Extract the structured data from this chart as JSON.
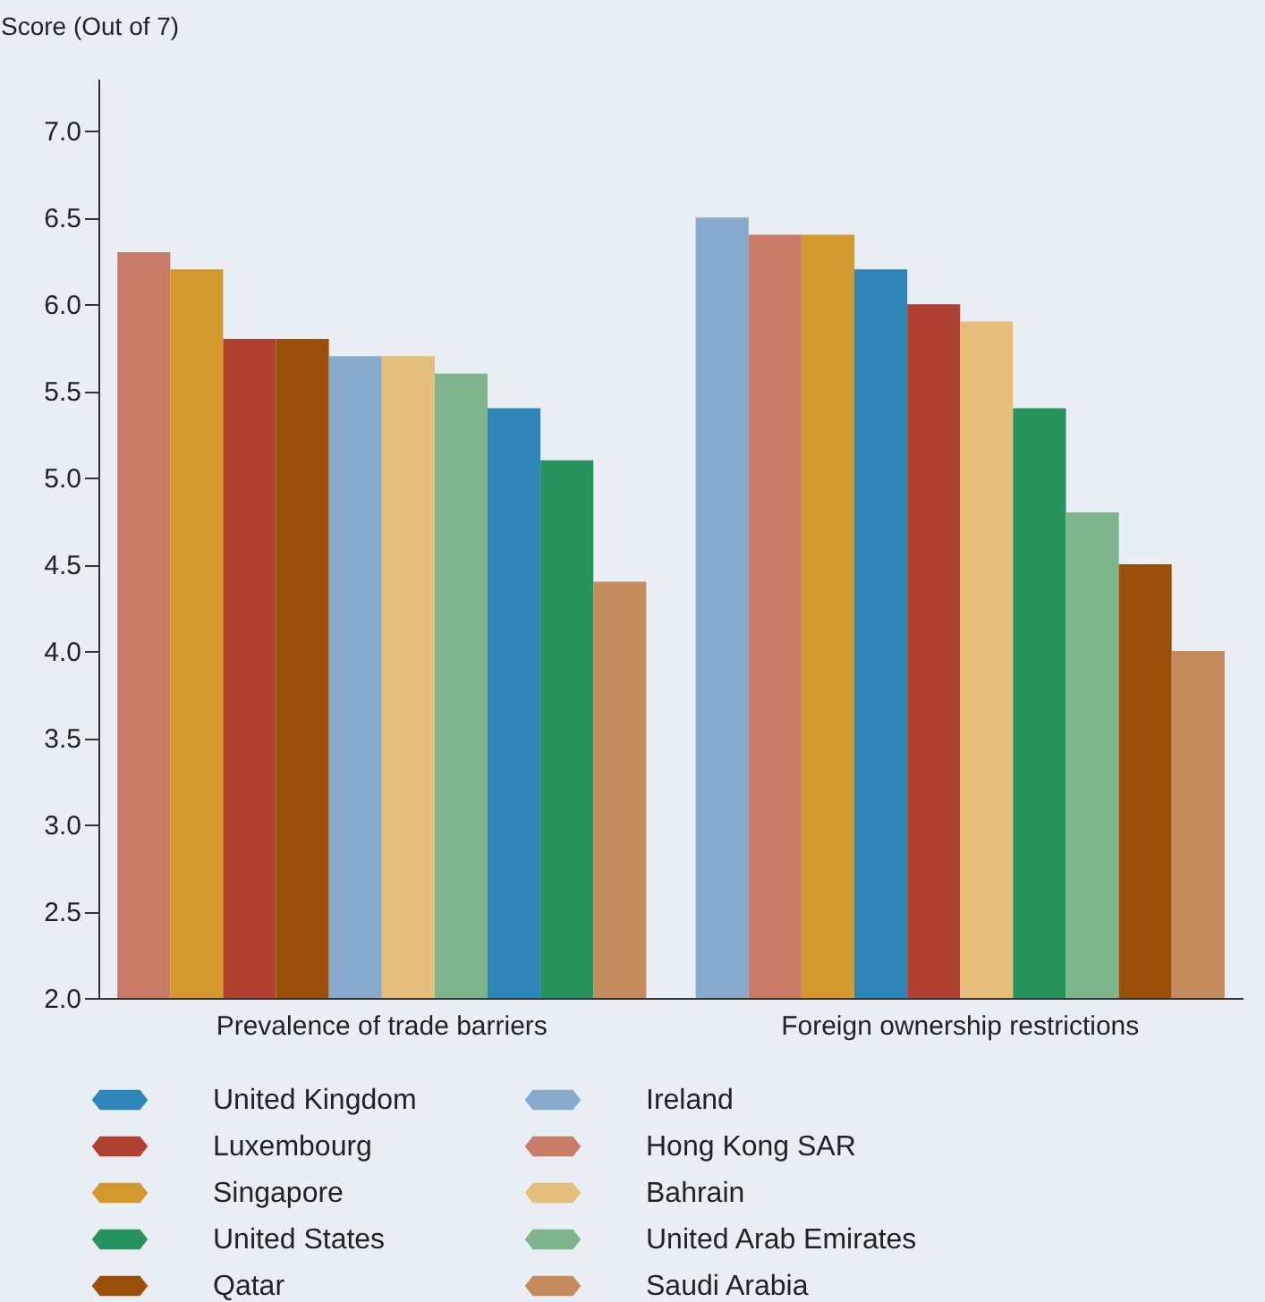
{
  "chart_data": {
    "type": "bar",
    "ylabel": "Score (Out of 7)",
    "categories": [
      "Prevalence of trade barriers",
      "Foreign ownership restrictions"
    ],
    "series": [
      {
        "name": "United Kingdom",
        "color": "#2e86b8",
        "values": [
          5.4,
          6.2
        ]
      },
      {
        "name": "Ireland",
        "color": "#86aacc",
        "values": [
          5.7,
          6.5
        ]
      },
      {
        "name": "Luxembourg",
        "color": "#b04030",
        "values": [
          5.8,
          6.0
        ]
      },
      {
        "name": "Hong Kong SAR",
        "color": "#c87c68",
        "values": [
          6.3,
          6.4
        ]
      },
      {
        "name": "Singapore",
        "color": "#d4992c",
        "values": [
          6.2,
          6.4
        ]
      },
      {
        "name": "Bahrain",
        "color": "#e6be7c",
        "values": [
          5.7,
          5.9
        ]
      },
      {
        "name": "United States",
        "color": "#27935c",
        "values": [
          5.1,
          5.4
        ]
      },
      {
        "name": "United Arab Emirates",
        "color": "#7db48c",
        "values": [
          5.6,
          4.8
        ]
      },
      {
        "name": "Qatar",
        "color": "#9a5009",
        "values": [
          5.8,
          4.5
        ]
      },
      {
        "name": "Saudi Arabia",
        "color": "#c48c5c",
        "values": [
          4.4,
          4.0
        ]
      }
    ],
    "ylim": [
      2,
      7.3
    ],
    "yticks": [
      {
        "value": 2,
        "label": "2.0"
      },
      {
        "value": 2.5,
        "label": "2.5"
      },
      {
        "value": 3,
        "label": "3.0"
      },
      {
        "value": 3.5,
        "label": "3.5"
      },
      {
        "value": 4,
        "label": "4.0"
      },
      {
        "value": 4.5,
        "label": "4.5"
      },
      {
        "value": 5,
        "label": "5.0"
      },
      {
        "value": 5.5,
        "label": "5.5"
      },
      {
        "value": 6,
        "label": "6.0"
      },
      {
        "value": 6.5,
        "label": "6.5"
      },
      {
        "value": 7,
        "label": "7.0"
      }
    ],
    "grid": false,
    "legend": "bottom"
  }
}
